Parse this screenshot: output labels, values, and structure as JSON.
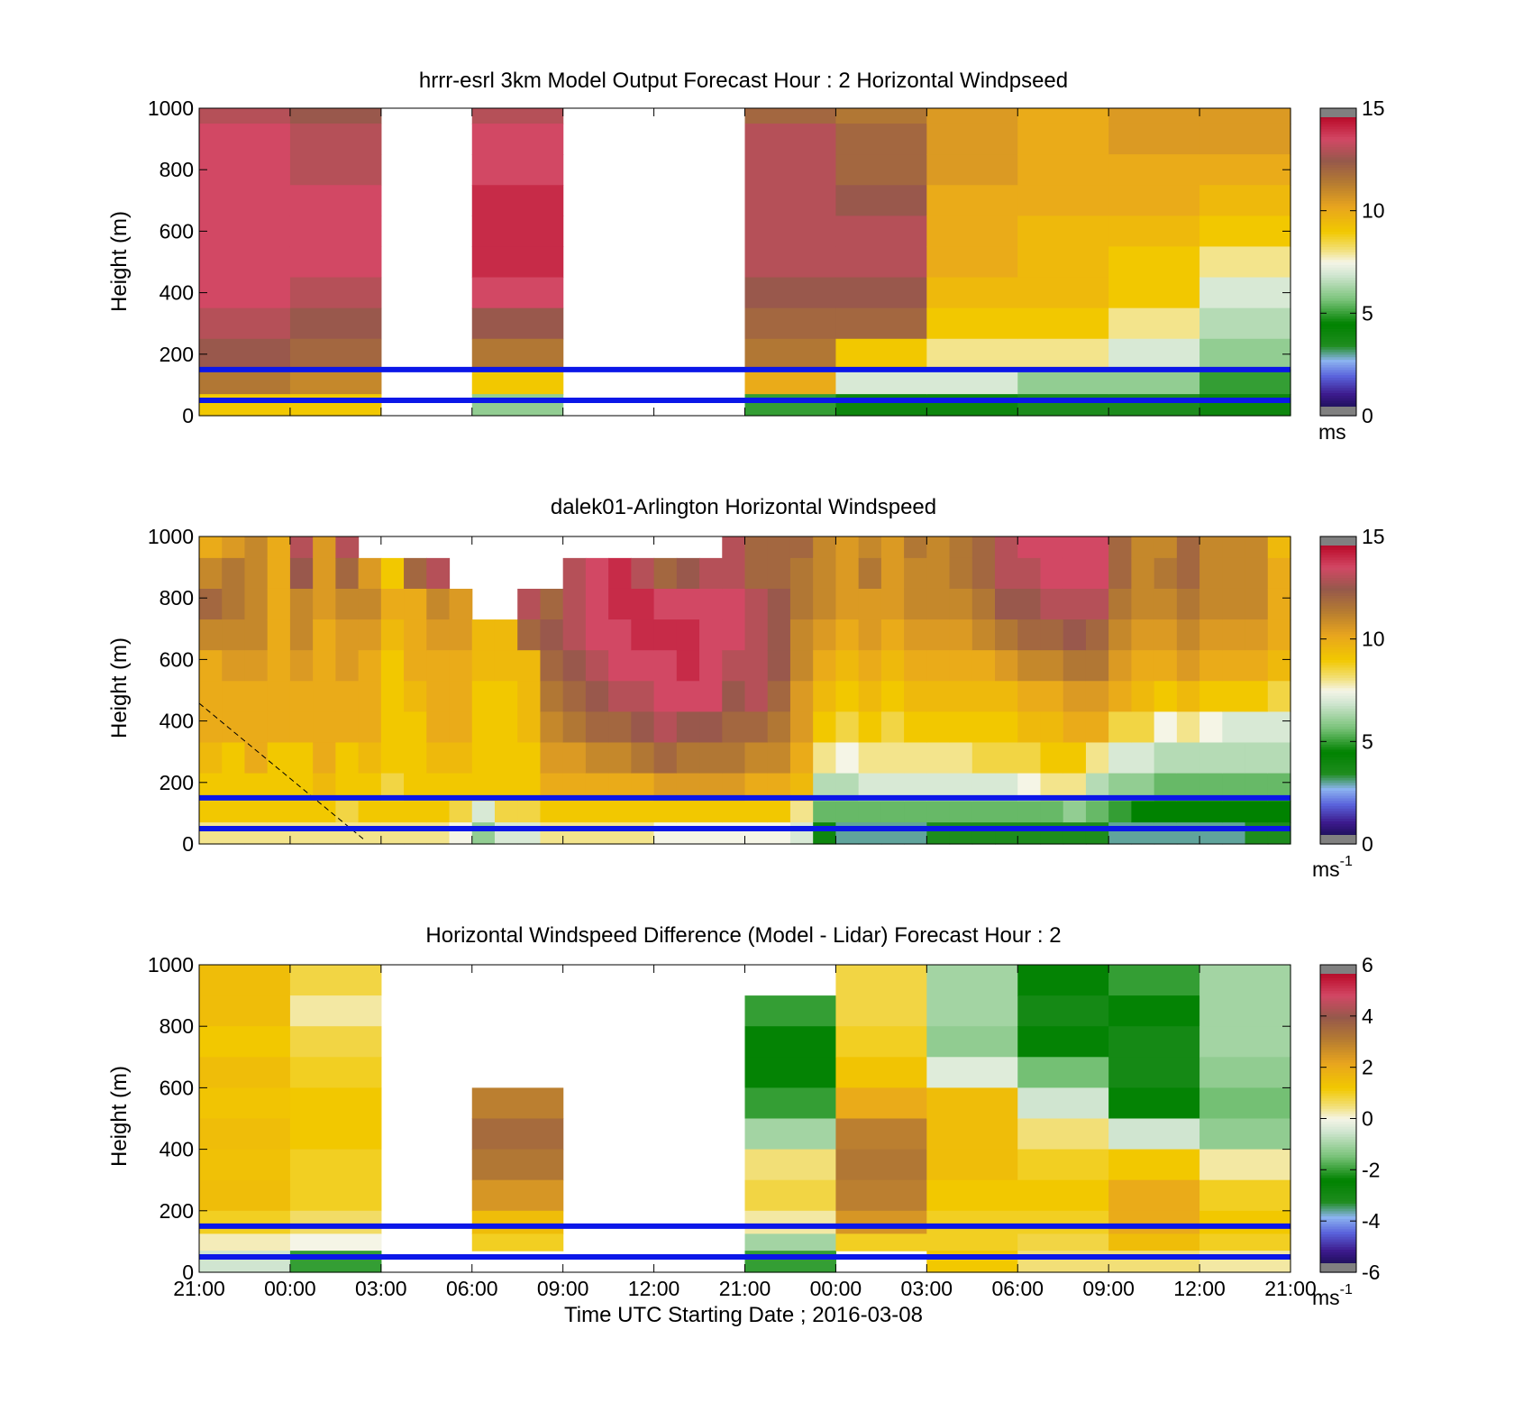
{
  "figure": {
    "xlabel": "Time UTC  Starting Date ; 2016-03-08",
    "xticks": [
      "21:00",
      "00:00",
      "03:00",
      "06:00",
      "09:00",
      "12:00",
      "21:00",
      "00:00",
      "03:00",
      "06:00",
      "09:00",
      "12:00",
      "21:00"
    ]
  },
  "chart_data": [
    {
      "type": "heatmap",
      "title": "hrrr-esrl 3km Model Output   Forecast Hour : 2 Horizontal Windpseed",
      "ylabel": "Height (m)",
      "ylim": [
        0,
        1000
      ],
      "yticks": [
        "0",
        "200",
        "400",
        "600",
        "800",
        "1000"
      ],
      "x_slots": [
        "21:00",
        "00:00",
        "03:00",
        "06:00",
        "09:00",
        "12:00",
        "21:00",
        "00:00",
        "03:00",
        "06:00",
        "09:00",
        "12:00"
      ],
      "heights_m": [
        1000,
        900,
        800,
        700,
        600,
        500,
        400,
        300,
        200,
        100,
        40
      ],
      "values": [
        [
          13,
          13.5,
          13.5,
          13.5,
          13.5,
          13.5,
          13.5,
          13,
          12.5,
          11.5,
          9
        ],
        [
          12.5,
          13,
          13,
          13.5,
          13.5,
          13.5,
          13,
          12.5,
          12,
          11,
          9
        ],
        [
          null,
          null,
          null,
          null,
          null,
          null,
          null,
          null,
          null,
          null,
          null
        ],
        [
          13,
          13.5,
          13.5,
          14,
          14,
          14,
          13.5,
          12.5,
          11.5,
          9,
          6
        ],
        [
          null,
          null,
          null,
          null,
          null,
          null,
          null,
          null,
          null,
          null,
          null
        ],
        [
          null,
          null,
          null,
          null,
          null,
          null,
          null,
          null,
          null,
          null,
          null
        ],
        [
          12,
          13,
          13,
          13,
          13,
          13,
          12.5,
          12,
          11.5,
          10,
          5
        ],
        [
          11.5,
          12,
          12,
          12.5,
          13,
          13,
          12.5,
          12,
          9,
          7,
          4
        ],
        [
          10.5,
          10.5,
          10.5,
          10,
          10,
          10,
          9.5,
          9,
          8,
          7,
          4
        ],
        [
          10,
          10,
          10,
          10,
          9.5,
          9.5,
          9.5,
          9,
          8,
          6,
          3.5
        ],
        [
          10.5,
          10.5,
          10,
          10,
          9.5,
          9,
          9,
          8,
          7,
          6,
          3.5
        ],
        [
          10.5,
          10.5,
          10,
          9.5,
          9,
          8,
          7,
          6.5,
          6,
          5,
          4
        ]
      ],
      "colorbar": {
        "min": 0,
        "max": 15,
        "ticks": [
          "0",
          "5",
          "10",
          "15"
        ],
        "unit": "ms"
      },
      "reference_lines_m": [
        150,
        50
      ],
      "reference_line_color": "#0b17e8"
    },
    {
      "type": "heatmap",
      "title": "dalek01-Arlington  Horizontal Windspeed",
      "ylabel": "Height (m)",
      "ylim": [
        0,
        1000
      ],
      "yticks": [
        "0",
        "200",
        "400",
        "600",
        "800",
        "1000"
      ],
      "columns": 48,
      "heights_m": [
        980,
        880,
        780,
        680,
        580,
        480,
        380,
        280,
        180,
        100,
        40
      ],
      "values": [
        [
          10,
          11,
          12,
          11,
          10,
          10,
          10,
          9.5,
          9,
          9,
          8
        ],
        [
          10.5,
          11.5,
          11.5,
          11,
          10.5,
          10,
          10,
          9,
          9,
          9,
          8
        ],
        [
          11,
          11,
          11,
          11,
          10.5,
          10,
          10,
          10,
          9,
          9,
          8
        ],
        [
          10,
          10,
          10,
          10,
          10,
          10,
          10,
          9,
          9,
          9,
          8
        ],
        [
          13,
          12.5,
          11,
          11,
          10.5,
          10,
          10,
          9,
          9,
          9,
          8
        ],
        [
          10.5,
          10.5,
          10.5,
          10,
          10,
          10,
          10,
          10,
          9.5,
          9,
          8
        ],
        [
          13,
          12,
          11,
          10.5,
          10.5,
          10,
          10,
          9,
          9,
          8.5,
          8
        ],
        [
          null,
          10.5,
          11,
          10.5,
          10,
          10,
          10,
          9.5,
          9,
          9,
          8
        ],
        [
          null,
          9,
          10,
          9.5,
          9,
          9,
          9,
          9,
          8.5,
          9,
          8
        ],
        [
          null,
          12,
          10,
          10,
          10,
          9.5,
          9,
          9,
          9,
          9,
          8
        ],
        [
          null,
          13,
          11,
          10.5,
          10,
          10,
          10,
          9.5,
          9,
          9,
          8
        ],
        [
          null,
          null,
          10.5,
          10.5,
          10,
          10,
          10,
          9.5,
          9,
          8.5,
          7.5
        ],
        [
          null,
          null,
          null,
          9.5,
          9.5,
          9,
          9,
          9,
          9,
          7,
          6
        ],
        [
          null,
          null,
          null,
          9.5,
          9.5,
          9,
          9,
          9,
          9,
          8.5,
          7
        ],
        [
          null,
          null,
          13,
          12,
          9.5,
          9.5,
          9.5,
          9,
          9,
          8.5,
          7
        ],
        [
          null,
          null,
          12,
          12.5,
          12,
          11.5,
          11,
          10.5,
          10,
          9,
          8
        ],
        [
          null,
          13,
          13,
          13,
          12.5,
          12,
          11.5,
          10.5,
          10,
          9,
          8
        ],
        [
          null,
          13.5,
          13.5,
          13.5,
          13,
          12.5,
          12,
          11,
          10,
          9,
          8
        ],
        [
          null,
          14,
          14,
          13.5,
          13.5,
          13,
          12,
          11,
          10,
          9,
          8
        ],
        [
          null,
          13,
          14,
          14,
          13.5,
          13,
          12.5,
          11.5,
          10,
          9,
          8
        ],
        [
          null,
          12,
          13.5,
          14,
          13.5,
          13.5,
          13,
          12,
          10.5,
          9,
          7.5
        ],
        [
          null,
          12.5,
          13.5,
          14,
          14,
          13.5,
          12.5,
          11.5,
          10.5,
          9,
          7.5
        ],
        [
          null,
          13,
          13.5,
          13.5,
          13.5,
          13.5,
          12.5,
          11.5,
          10.5,
          9,
          7.5
        ],
        [
          13,
          13,
          13.5,
          13.5,
          13,
          12.5,
          12,
          11.5,
          10.5,
          9,
          7.5
        ],
        [
          12,
          12,
          13,
          13,
          13,
          13,
          12,
          11,
          10,
          9,
          7.5
        ],
        [
          12,
          12,
          12.5,
          12.5,
          12.5,
          12,
          11.5,
          11,
          10,
          9,
          7.5
        ],
        [
          12,
          11.5,
          11.5,
          11,
          11,
          10.5,
          10.5,
          10,
          9.5,
          8,
          7
        ],
        [
          11,
          11,
          11,
          10.5,
          10,
          9.5,
          9,
          8,
          6.5,
          5.5,
          4
        ],
        [
          10.5,
          10.5,
          10.5,
          10,
          9.5,
          9,
          8.5,
          7.5,
          6.5,
          5.5,
          3
        ],
        [
          11,
          11.5,
          10.5,
          10.5,
          10,
          9.5,
          9,
          8,
          7,
          5.5,
          3
        ],
        [
          10.5,
          10.5,
          10.5,
          10,
          9.5,
          9,
          8.5,
          8,
          7,
          5.5,
          3
        ],
        [
          11.5,
          11,
          11,
          10.5,
          10,
          9.5,
          9,
          8,
          7,
          5.5,
          3
        ],
        [
          11,
          11,
          11,
          10.5,
          10,
          9.5,
          9,
          8,
          7,
          5.5,
          3.5
        ],
        [
          11.5,
          11.5,
          11,
          10.5,
          10,
          9.5,
          9,
          8,
          7,
          5.5,
          3.5
        ],
        [
          12,
          12,
          11.5,
          11,
          10,
          9.5,
          9,
          8.5,
          7,
          5.5,
          3.5
        ],
        [
          13,
          13,
          12.5,
          11.5,
          10.5,
          9.5,
          9,
          8.5,
          7,
          5.5,
          3.5
        ],
        [
          13.5,
          13,
          12.5,
          12,
          11,
          10,
          9.5,
          8.5,
          7.5,
          5.5,
          3.5
        ],
        [
          13.5,
          13.5,
          13,
          12,
          11,
          10,
          9.5,
          9,
          8,
          5.5,
          3.5
        ],
        [
          13.5,
          13.5,
          13,
          12.5,
          11.5,
          10.5,
          10,
          9,
          8,
          6,
          3.5
        ],
        [
          13.5,
          13.5,
          13,
          12,
          11.5,
          10.5,
          10,
          8,
          6.5,
          5.5,
          3.5
        ],
        [
          12,
          12,
          11.5,
          11,
          10.5,
          10,
          8.5,
          7,
          6,
          5,
          3
        ],
        [
          11,
          11,
          11,
          10.5,
          10,
          9.5,
          8.5,
          7,
          6,
          4.5,
          3
        ],
        [
          11,
          11.5,
          11,
          10.5,
          10,
          9,
          7.5,
          6.5,
          5.5,
          4.5,
          3
        ],
        [
          12,
          12,
          11.5,
          11,
          10.5,
          9.5,
          8,
          6.5,
          5.5,
          4.5,
          3
        ],
        [
          11,
          11,
          11,
          10.5,
          10,
          9,
          7.5,
          6.5,
          5.5,
          4.5,
          3
        ],
        [
          11,
          11,
          11,
          10.5,
          10,
          9,
          7,
          6.5,
          5.5,
          4.5,
          3
        ],
        [
          11,
          11,
          11,
          10.5,
          10,
          9,
          7,
          6.5,
          5.5,
          4.5,
          3.5
        ],
        [
          9.5,
          10,
          10,
          10,
          9.5,
          8.5,
          7,
          6.5,
          5.5,
          4.5,
          3.5
        ]
      ],
      "colorbar": {
        "min": 0,
        "max": 15,
        "ticks": [
          "0",
          "5",
          "10",
          "15"
        ],
        "unit": "ms",
        "unit_exponent": "-1"
      },
      "reference_lines_m": [
        150,
        50
      ],
      "reference_line_color": "#0b17e8"
    },
    {
      "type": "heatmap",
      "title": "Horizontal Windspeed Difference (Model - Lidar) Forecast Hour : 2",
      "ylabel": "Height (m)",
      "ylim": [
        0,
        1000
      ],
      "yticks": [
        "0",
        "200",
        "400",
        "600",
        "800",
        "1000"
      ],
      "x_slots": [
        "21:00",
        "00:00",
        "03:00",
        "06:00",
        "09:00",
        "12:00",
        "21:00",
        "00:00",
        "03:00",
        "06:00",
        "09:00",
        "12:00"
      ],
      "heights_m": [
        950,
        850,
        750,
        650,
        550,
        450,
        350,
        250,
        150,
        100,
        40
      ],
      "values": [
        [
          1.5,
          1.5,
          1.2,
          1.5,
          1.3,
          1.5,
          1.4,
          1.5,
          1.0,
          0.2,
          -0.5
        ],
        [
          0.8,
          0.3,
          0.8,
          1.0,
          1.2,
          1.2,
          1.0,
          1.0,
          0.6,
          0.0,
          -2
        ],
        [
          null,
          null,
          null,
          null,
          null,
          null,
          null,
          null,
          null,
          null,
          null
        ],
        [
          null,
          null,
          null,
          null,
          3.0,
          3.5,
          3.2,
          2.5,
          1.5,
          1.0,
          null
        ],
        [
          null,
          null,
          null,
          null,
          null,
          null,
          null,
          null,
          null,
          null,
          null
        ],
        [
          null,
          null,
          null,
          null,
          null,
          null,
          null,
          null,
          null,
          null,
          null
        ],
        [
          null,
          -2.0,
          -2.5,
          -2.5,
          -2.0,
          -1.0,
          0.5,
          0.8,
          0.3,
          -1.0,
          -2.0
        ],
        [
          0.8,
          0.8,
          1.0,
          1.3,
          2.0,
          3.0,
          3.2,
          3.0,
          2.5,
          1.0,
          null
        ],
        [
          -1.0,
          -1.0,
          -1.2,
          -0.3,
          1.5,
          1.5,
          1.5,
          1.2,
          1.0,
          1.0,
          1.2
        ],
        [
          -2.5,
          -3.0,
          -2.5,
          -1.5,
          -0.5,
          0.5,
          1.0,
          1.2,
          1.0,
          0.8,
          0.5
        ],
        [
          -2.0,
          -2.5,
          -3.0,
          -3.0,
          -2.5,
          -0.5,
          1.2,
          2.0,
          2.0,
          1.5,
          0.5
        ],
        [
          -1.0,
          -1.0,
          -1.0,
          -1.2,
          -1.5,
          -1.2,
          0.3,
          1.0,
          1.2,
          1.0,
          0.3
        ]
      ],
      "colorbar": {
        "min": -6,
        "max": 6,
        "ticks": [
          "-6",
          "-4",
          "-2",
          "0",
          "2",
          "4",
          "6"
        ],
        "unit": "ms",
        "unit_exponent": "-1"
      },
      "reference_lines_m": [
        150,
        50
      ],
      "reference_line_color": "#0b17e8"
    }
  ]
}
